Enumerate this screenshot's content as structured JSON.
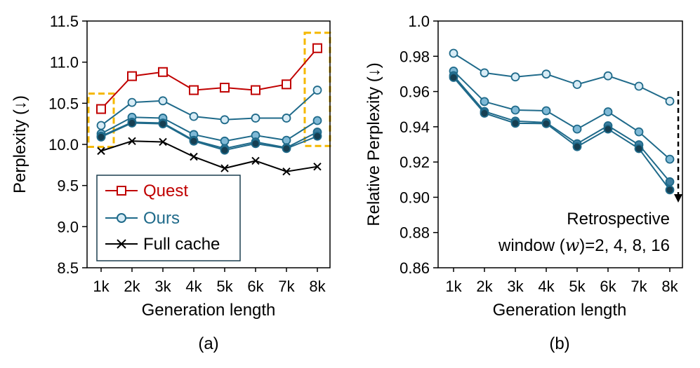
{
  "chart_data": [
    {
      "panel": "(a)",
      "type": "line",
      "categories": [
        "1k",
        "2k",
        "3k",
        "4k",
        "5k",
        "6k",
        "7k",
        "8k"
      ],
      "xlabel": "Generation length",
      "ylabel": "Perplexity (↓)",
      "ylim": [
        8.5,
        11.5
      ],
      "yticks": [
        "8.5",
        "9.0",
        "9.5",
        "10.0",
        "10.5",
        "11.0",
        "11.5"
      ],
      "legend": [
        "Quest",
        "Ours",
        "Full cache"
      ],
      "legend_position": "bottom-left",
      "highlight_boxes": [
        "1k",
        "8k"
      ],
      "colors": {
        "quest": "#c00000",
        "ours": "#1f6a8a",
        "full": "#000000",
        "highlight": "#f5b800"
      },
      "series": [
        {
          "name": "Quest",
          "marker": "square",
          "values": [
            10.43,
            10.83,
            10.88,
            10.66,
            10.69,
            10.66,
            10.73,
            11.17
          ]
        },
        {
          "name": "Ours (w=2)",
          "marker": "circle",
          "values": [
            10.23,
            10.51,
            10.53,
            10.34,
            10.3,
            10.32,
            10.32,
            10.66
          ]
        },
        {
          "name": "Ours (w=4)",
          "marker": "circle",
          "values": [
            10.13,
            10.33,
            10.32,
            10.12,
            10.04,
            10.11,
            10.05,
            10.29
          ]
        },
        {
          "name": "Ours (w=8)",
          "marker": "circle",
          "values": [
            10.1,
            10.27,
            10.26,
            10.05,
            9.95,
            10.03,
            9.96,
            10.15
          ]
        },
        {
          "name": "Ours (w=16)",
          "marker": "circle",
          "values": [
            10.09,
            10.26,
            10.25,
            10.04,
            9.93,
            10.01,
            9.95,
            10.1
          ]
        },
        {
          "name": "Full cache",
          "marker": "x",
          "values": [
            9.92,
            10.04,
            10.03,
            9.85,
            9.71,
            9.8,
            9.67,
            9.73
          ]
        }
      ]
    },
    {
      "panel": "(b)",
      "type": "line",
      "categories": [
        "1k",
        "2k",
        "3k",
        "4k",
        "5k",
        "6k",
        "7k",
        "8k"
      ],
      "xlabel": "Generation length",
      "ylabel": "Relative Perplexity (↓)",
      "ylim": [
        0.86,
        1.0
      ],
      "yticks": [
        "0.86",
        "0.88",
        "0.90",
        "0.92",
        "0.94",
        "0.96",
        "0.98",
        "1.0"
      ],
      "annotation_line1": "Retrospective",
      "annotation_line2": "window (w)=2, 4, 8, 16",
      "series": [
        {
          "name": "w=2",
          "values": [
            0.9817,
            0.9706,
            0.9683,
            0.9699,
            0.964,
            0.9689,
            0.963,
            0.9545
          ]
        },
        {
          "name": "w=4",
          "values": [
            0.9716,
            0.9543,
            0.9495,
            0.9491,
            0.9387,
            0.9485,
            0.9371,
            0.9216
          ]
        },
        {
          "name": "w=8",
          "values": [
            0.969,
            0.9487,
            0.9432,
            0.9424,
            0.9304,
            0.9406,
            0.9298,
            0.9088
          ]
        },
        {
          "name": "w=16",
          "values": [
            0.968,
            0.9477,
            0.942,
            0.9418,
            0.9287,
            0.9387,
            0.9276,
            0.9042
          ]
        }
      ],
      "series_fills": [
        "#d8ecf6",
        "#7fb9d6",
        "#3d7ea0",
        "#163f52"
      ],
      "line_color": "#1f6a8a"
    }
  ],
  "captions": {
    "a": "(a)",
    "b": "(b)"
  }
}
